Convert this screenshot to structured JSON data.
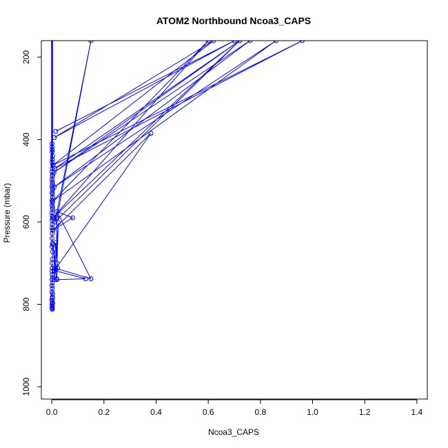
{
  "chart_data": {
    "type": "line",
    "title": "ATOM2 Northbound Ncoa3_CAPS",
    "xlabel": "Ncoa3_CAPS",
    "ylabel": "Pressure (mbar)",
    "xlim": [
      -0.04,
      1.44
    ],
    "ylim": [
      160,
      1030
    ],
    "y_reversed": true,
    "xticks": [
      0.0,
      0.2,
      0.4,
      0.6,
      0.8,
      1.0,
      1.2,
      1.4
    ],
    "xtick_labels": [
      "0.0",
      "0.2",
      "0.4",
      "0.6",
      "0.8",
      "1.0",
      "1.2",
      "1.4"
    ],
    "yticks": [
      200,
      400,
      600,
      800,
      1000
    ],
    "ytick_labels": [
      "200",
      "400",
      "600",
      "800",
      "1000"
    ],
    "grid": false,
    "color": "#0000ff",
    "series": [
      {
        "x": [
          0.001,
          0.001,
          0.002,
          0.001,
          0.003,
          0.002,
          0.001,
          0.004,
          0.002,
          0.001,
          0.003,
          0.002,
          0.001,
          0.002,
          0.003,
          0.001,
          0.002,
          0.004,
          0.001,
          0.002,
          0.003,
          0.001,
          0.002,
          0.001,
          0.003,
          0.002,
          0.001,
          0.002,
          0.003,
          0.001,
          0.002,
          0.001,
          0.003,
          0.002,
          0.001,
          0.002,
          0.001,
          0.003,
          0.002,
          0.001,
          0.002,
          0.001,
          0.002,
          0.003,
          0.001,
          0.002,
          0.001,
          0.002,
          0.001,
          0.003,
          0.002,
          0.001,
          0.002,
          0.001,
          0.002,
          0.001,
          0.002,
          0.001,
          0.003,
          0.002
        ],
        "y": [
          410,
          418,
          425,
          430,
          440,
          448,
          455,
          462,
          470,
          478,
          485,
          490,
          497,
          503,
          508,
          513,
          518,
          522,
          528,
          533,
          540,
          547,
          553,
          560,
          565,
          570,
          578,
          585,
          590,
          596,
          606,
          614,
          620,
          628,
          640,
          652,
          660,
          672,
          690,
          700,
          712,
          720,
          728,
          735,
          740,
          748,
          755,
          762,
          770,
          775,
          782,
          790,
          795,
          800,
          805,
          810,
          812,
          808,
          798,
          785
        ]
      },
      {
        "x": [
          0.015,
          0.7,
          0.01,
          0.62,
          0.005,
          0.96,
          0.012,
          0.72,
          0.008,
          0.76,
          0.01,
          0.86,
          0.003,
          0.6,
          0.005,
          0.72,
          0.012,
          0.15,
          0.02,
          0.018,
          0.02,
          0.025,
          0.01,
          0.02,
          0.13,
          0.01,
          0.38,
          0.005,
          0.08,
          0.02,
          0.15,
          0.012,
          0.005,
          0.018,
          0.022,
          0.015,
          0.01
        ],
        "y": [
          380,
          160,
          395,
          160,
          462,
          160,
          470,
          160,
          480,
          160,
          515,
          160,
          550,
          160,
          590,
          160,
          600,
          160,
          590,
          590,
          700,
          602,
          740,
          740,
          738,
          718,
          385,
          620,
          590,
          575,
          738,
          712,
          655,
          738,
          712,
          650,
          720
        ]
      }
    ]
  }
}
